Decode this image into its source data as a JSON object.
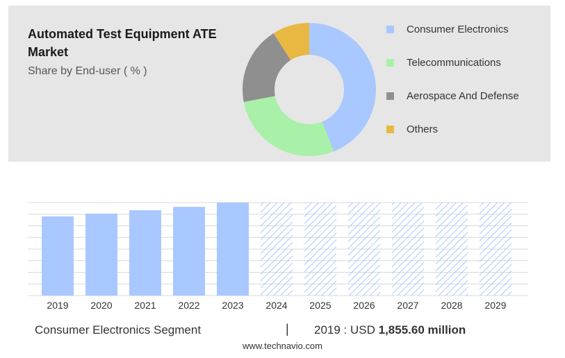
{
  "title": "Automated Test Equipment ATE Market",
  "subtitle": "Share by End-user ( % )",
  "colors": {
    "consumer": "#a8c8ff",
    "telecom": "#a9f0a9",
    "aerospace": "#8f8f8f",
    "others": "#e8b843",
    "forecast_hatch": "#a8c8ff"
  },
  "chart_data": [
    {
      "type": "pie",
      "title": "",
      "slices": [
        {
          "label": "Consumer Electronics",
          "value": 44,
          "color": "#a8c8ff"
        },
        {
          "label": "Telecommunications",
          "value": 28,
          "color": "#a9f0a9"
        },
        {
          "label": "Aerospace And Defense",
          "value": 19,
          "color": "#8f8f8f"
        },
        {
          "label": "Others",
          "value": 9,
          "color": "#e8b843"
        }
      ],
      "legend": "right"
    },
    {
      "type": "bar",
      "title": "",
      "categories": [
        "2019",
        "2020",
        "2021",
        "2022",
        "2023",
        "2024",
        "2025",
        "2026",
        "2027",
        "2028",
        "2029"
      ],
      "values": [
        1855.6,
        1922,
        2001,
        2081,
        2180,
        2180,
        2180,
        2180,
        2180,
        2180,
        2180
      ],
      "forecast_from": "2024",
      "ylim": [
        0,
        2180
      ],
      "grid": true
    }
  ],
  "footer": {
    "segment_label": "Consumer Electronics Segment",
    "separator": "|",
    "year_prefix": "2019 : USD ",
    "value": "1,855.60 million"
  },
  "source_url": "www.technavio.com"
}
